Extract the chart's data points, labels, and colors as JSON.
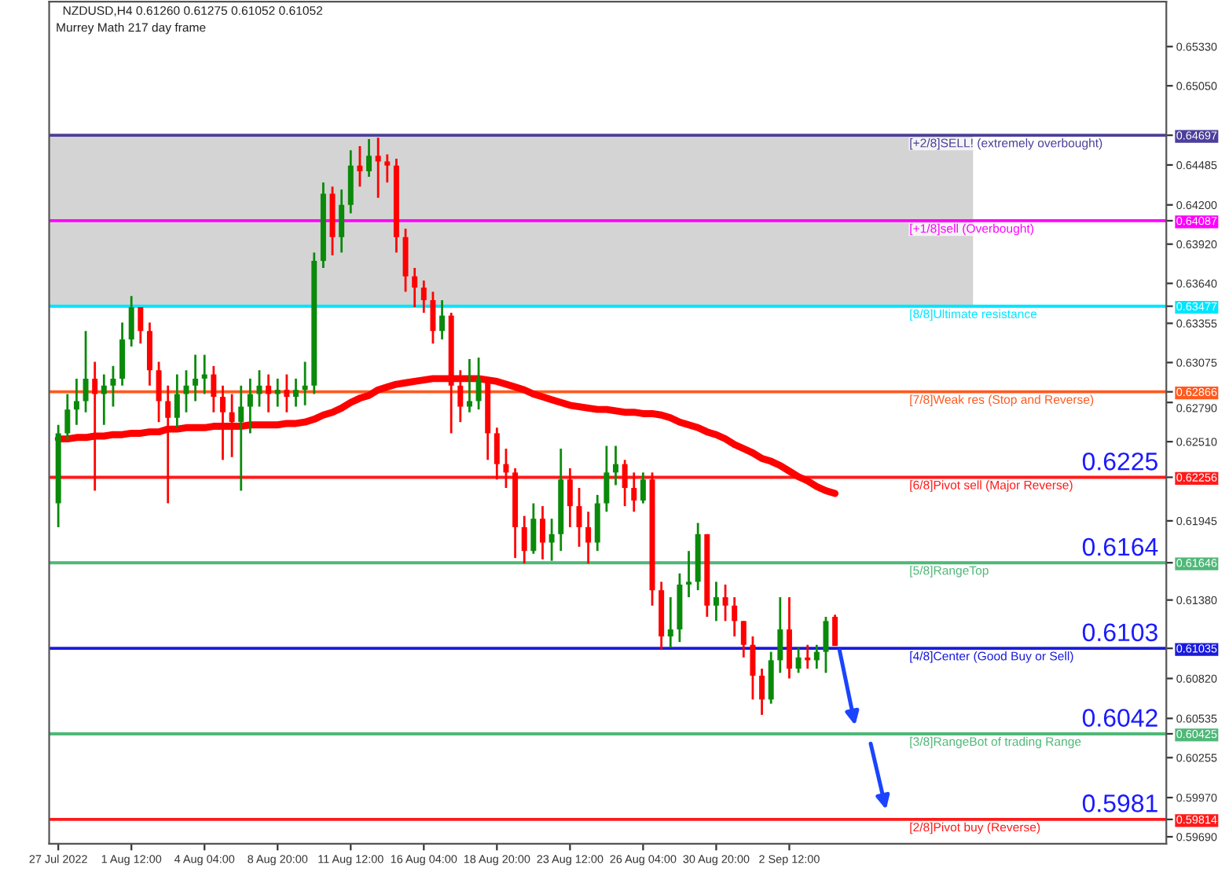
{
  "chart_data": {
    "type": "candlestick",
    "title": "NZDUSD,H4 0.61260 0.61275 0.61052 0.61052",
    "subtitle": "Murrey Math 217 day frame",
    "categories": [
      "27 Jul 2022",
      null,
      null,
      null,
      null,
      null,
      null,
      null,
      "1 Aug 12:00",
      null,
      null,
      null,
      null,
      null,
      null,
      null,
      "4 Aug 04:00",
      null,
      null,
      null,
      null,
      null,
      null,
      null,
      "8 Aug 20:00",
      null,
      null,
      null,
      null,
      null,
      null,
      null,
      "11 Aug 12:00",
      null,
      null,
      null,
      null,
      null,
      null,
      null,
      "16 Aug 04:00",
      null,
      null,
      null,
      null,
      null,
      null,
      null,
      "18 Aug 20:00",
      null,
      null,
      null,
      null,
      null,
      null,
      null,
      "23 Aug 12:00",
      null,
      null,
      null,
      null,
      null,
      null,
      null,
      "26 Aug 04:00",
      null,
      null,
      null,
      null,
      null,
      null,
      null,
      "30 Aug 20:00",
      null,
      null,
      null,
      null,
      null,
      null,
      null,
      "2 Sep 12:00",
      null,
      null,
      null,
      null,
      null
    ],
    "ohlc": [
      [
        0.6207,
        0.6263,
        0.619,
        0.6257
      ],
      [
        0.6257,
        0.6285,
        0.6252,
        0.6274
      ],
      [
        0.6274,
        0.6296,
        0.6263,
        0.628
      ],
      [
        0.628,
        0.633,
        0.6272,
        0.6296
      ],
      [
        0.6296,
        0.6308,
        0.6216,
        0.6285
      ],
      [
        0.6285,
        0.6299,
        0.6263,
        0.6291
      ],
      [
        0.6291,
        0.6305,
        0.6276,
        0.6296
      ],
      [
        0.6296,
        0.6336,
        0.6291,
        0.6324
      ],
      [
        0.6324,
        0.6355,
        0.6319,
        0.6347
      ],
      [
        0.6347,
        0.6347,
        0.6321,
        0.633
      ],
      [
        0.633,
        0.6336,
        0.6291,
        0.6302
      ],
      [
        0.6302,
        0.6308,
        0.6265,
        0.628
      ],
      [
        0.628,
        0.6291,
        0.6207,
        0.6268
      ],
      [
        0.6268,
        0.6299,
        0.6261,
        0.6285
      ],
      [
        0.6285,
        0.6302,
        0.6272,
        0.6291
      ],
      [
        0.6291,
        0.6313,
        0.628,
        0.6296
      ],
      [
        0.6296,
        0.6313,
        0.6285,
        0.6299
      ],
      [
        0.6299,
        0.6305,
        0.6272,
        0.6283
      ],
      [
        0.6283,
        0.6291,
        0.6238,
        0.6272
      ],
      [
        0.6272,
        0.6285,
        0.624,
        0.6265
      ],
      [
        0.6265,
        0.6291,
        0.6216,
        0.6276
      ],
      [
        0.6276,
        0.6296,
        0.6257,
        0.6285
      ],
      [
        0.6285,
        0.6302,
        0.6276,
        0.6291
      ],
      [
        0.6291,
        0.6299,
        0.6272,
        0.6285
      ],
      [
        0.6285,
        0.6296,
        0.6276,
        0.6288
      ],
      [
        0.6288,
        0.6299,
        0.6272,
        0.6283
      ],
      [
        0.6283,
        0.6296,
        0.6276,
        0.6288
      ],
      [
        0.6288,
        0.6308,
        0.6277,
        0.6291
      ],
      [
        0.6291,
        0.6386,
        0.6285,
        0.638
      ],
      [
        0.638,
        0.6436,
        0.6375,
        0.6428
      ],
      [
        0.6428,
        0.6433,
        0.6384,
        0.6397
      ],
      [
        0.6397,
        0.6431,
        0.6386,
        0.642
      ],
      [
        0.642,
        0.6459,
        0.6414,
        0.6448
      ],
      [
        0.6448,
        0.6462,
        0.6433,
        0.6444
      ],
      [
        0.6444,
        0.6467,
        0.644,
        0.6455
      ],
      [
        0.6455,
        0.6468,
        0.6425,
        0.6451
      ],
      [
        0.6451,
        0.6456,
        0.6436,
        0.6448
      ],
      [
        0.6448,
        0.6453,
        0.6386,
        0.6397
      ],
      [
        0.6397,
        0.6403,
        0.6358,
        0.6369
      ],
      [
        0.6369,
        0.6375,
        0.6347,
        0.6361
      ],
      [
        0.6361,
        0.6366,
        0.6343,
        0.6352
      ],
      [
        0.6352,
        0.6358,
        0.6321,
        0.633
      ],
      [
        0.633,
        0.6352,
        0.6324,
        0.6341
      ],
      [
        0.6341,
        0.6343,
        0.6257,
        0.6291
      ],
      [
        0.6291,
        0.6302,
        0.6265,
        0.6276
      ],
      [
        0.6276,
        0.631,
        0.6272,
        0.628
      ],
      [
        0.628,
        0.6311,
        0.6274,
        0.6296
      ],
      [
        0.6296,
        0.6296,
        0.6238,
        0.6257
      ],
      [
        0.6257,
        0.6261,
        0.6224,
        0.6235
      ],
      [
        0.6235,
        0.6246,
        0.6218,
        0.6229
      ],
      [
        0.6229,
        0.6232,
        0.6168,
        0.619
      ],
      [
        0.619,
        0.6198,
        0.6164,
        0.6173
      ],
      [
        0.6173,
        0.6207,
        0.6171,
        0.6196
      ],
      [
        0.6196,
        0.6205,
        0.6167,
        0.6179
      ],
      [
        0.6179,
        0.6196,
        0.6166,
        0.6185
      ],
      [
        0.6185,
        0.6246,
        0.6173,
        0.6224
      ],
      [
        0.6224,
        0.6232,
        0.619,
        0.6205
      ],
      [
        0.6205,
        0.6218,
        0.6176,
        0.619
      ],
      [
        0.619,
        0.6201,
        0.6164,
        0.6179
      ],
      [
        0.6179,
        0.6213,
        0.6173,
        0.6207
      ],
      [
        0.6207,
        0.6248,
        0.6201,
        0.6229
      ],
      [
        0.6229,
        0.6248,
        0.622,
        0.6235
      ],
      [
        0.6235,
        0.6238,
        0.6205,
        0.6218
      ],
      [
        0.6218,
        0.6229,
        0.6201,
        0.6209
      ],
      [
        0.6209,
        0.6229,
        0.6207,
        0.6224
      ],
      [
        0.6224,
        0.6229,
        0.6134,
        0.6145
      ],
      [
        0.6145,
        0.6151,
        0.6103,
        0.6112
      ],
      [
        0.6112,
        0.614,
        0.6104,
        0.6117
      ],
      [
        0.6117,
        0.6157,
        0.6108,
        0.6149
      ],
      [
        0.6149,
        0.6173,
        0.614,
        0.6151
      ],
      [
        0.6151,
        0.6193,
        0.6145,
        0.6185
      ],
      [
        0.6185,
        0.6185,
        0.6126,
        0.6134
      ],
      [
        0.6134,
        0.6151,
        0.6123,
        0.614
      ],
      [
        0.614,
        0.6149,
        0.6123,
        0.6134
      ],
      [
        0.6134,
        0.614,
        0.6112,
        0.6123
      ],
      [
        0.6123,
        0.6123,
        0.6097,
        0.6106
      ],
      [
        0.6106,
        0.6112,
        0.6067,
        0.6084
      ],
      [
        0.6084,
        0.6089,
        0.6056,
        0.6067
      ],
      [
        0.6067,
        0.6101,
        0.6064,
        0.6095
      ],
      [
        0.6095,
        0.614,
        0.6086,
        0.6117
      ],
      [
        0.6117,
        0.614,
        0.6082,
        0.6089
      ],
      [
        0.6089,
        0.6104,
        0.6086,
        0.6097
      ],
      [
        0.6097,
        0.6106,
        0.6089,
        0.6095
      ],
      [
        0.6095,
        0.6106,
        0.6089,
        0.6101
      ],
      [
        0.6101,
        0.6126,
        0.6086,
        0.6123
      ],
      [
        0.6126,
        0.61275,
        0.61052,
        0.61052
      ]
    ],
    "series": [
      {
        "type": "line",
        "color": "#ff0000",
        "values": [
          0.6253,
          0.6253,
          0.6254,
          0.6254,
          0.6255,
          0.6255,
          0.6256,
          0.6256,
          0.6257,
          0.6257,
          0.6258,
          0.6258,
          0.626,
          0.626,
          0.6261,
          0.6261,
          0.6261,
          0.6262,
          0.6262,
          0.6262,
          0.6262,
          0.6263,
          0.6263,
          0.6263,
          0.6263,
          0.6264,
          0.6264,
          0.6265,
          0.6267,
          0.627,
          0.6272,
          0.6275,
          0.6279,
          0.6282,
          0.6284,
          0.6288,
          0.629,
          0.6292,
          0.6293,
          0.6294,
          0.6295,
          0.6296,
          0.6296,
          0.6296,
          0.6296,
          0.6296,
          0.6296,
          0.6295,
          0.6294,
          0.6292,
          0.629,
          0.6288,
          0.6285,
          0.6283,
          0.6281,
          0.6279,
          0.6277,
          0.6276,
          0.6275,
          0.6274,
          0.6274,
          0.6273,
          0.6272,
          0.6272,
          0.6271,
          0.6271,
          0.627,
          0.6268,
          0.6265,
          0.6263,
          0.6261,
          0.6258,
          0.6256,
          0.6253,
          0.6249,
          0.6246,
          0.6243,
          0.6239,
          0.6237,
          0.6234,
          0.623,
          0.6226,
          0.6223,
          0.6219,
          0.6216,
          0.6214
        ]
      }
    ],
    "ylim": [
      0.5964,
      0.6565
    ],
    "yticks": [
      {
        "value": 0.6533,
        "label": "0.65330"
      },
      {
        "value": 0.6505,
        "label": "0.65050"
      },
      {
        "value": 0.64485,
        "label": "0.64485"
      },
      {
        "value": 0.642,
        "label": "0.64200"
      },
      {
        "value": 0.6392,
        "label": "0.63920"
      },
      {
        "value": 0.6364,
        "label": "0.63640"
      },
      {
        "value": 0.63355,
        "label": "0.63355"
      },
      {
        "value": 0.63075,
        "label": "0.63075"
      },
      {
        "value": 0.6279,
        "label": "0.62790"
      },
      {
        "value": 0.6251,
        "label": "0.62510"
      },
      {
        "value": 0.61945,
        "label": "0.61945"
      },
      {
        "value": 0.6138,
        "label": "0.61380"
      },
      {
        "value": 0.6082,
        "label": "0.60820"
      },
      {
        "value": 0.60535,
        "label": "0.60535"
      },
      {
        "value": 0.60255,
        "label": "0.60255"
      },
      {
        "value": 0.5997,
        "label": "0.59970"
      },
      {
        "value": 0.5969,
        "label": "0.59690"
      },
      {
        "value": 0.64697,
        "label": "0.64697"
      },
      {
        "value": 0.64087,
        "label": "0.64087"
      },
      {
        "value": 0.63477,
        "label": "0.63477"
      },
      {
        "value": 0.62866,
        "label": "0.62866"
      },
      {
        "value": 0.62256,
        "label": "0.62256"
      },
      {
        "value": 0.61646,
        "label": "0.61646"
      },
      {
        "value": 0.61035,
        "label": "0.61035"
      },
      {
        "value": 0.60425,
        "label": "0.60425"
      },
      {
        "value": 0.59814,
        "label": "0.59814"
      }
    ],
    "ref_lines": [
      {
        "axis": "y",
        "value": 0.64697,
        "label": "[+2/8]SELL! (extremely overbought)",
        "color": "#4b3f9a"
      },
      {
        "axis": "y",
        "value": 0.64087,
        "label": "[+1/8]sell (Overbought)",
        "color": "#ff00ff"
      },
      {
        "axis": "y",
        "value": 0.63477,
        "label": "[8/8]Ultimate resistance",
        "color": "#00e5ff"
      },
      {
        "axis": "y",
        "value": 0.62866,
        "label": "[7/8]Weak res (Stop and Reverse)",
        "color": "#ff5a1f"
      },
      {
        "axis": "y",
        "value": 0.62256,
        "label": "[6/8]Pivot sell (Major Reverse)",
        "color": "#ff1a1a"
      },
      {
        "axis": "y",
        "value": 0.61646,
        "label": "[5/8]RangeTop",
        "color": "#4fb878"
      },
      {
        "axis": "y",
        "value": 0.61035,
        "label": "[4/8]Center (Good Buy or Sell)",
        "color": "#1a1adb"
      },
      {
        "axis": "y",
        "value": 0.60425,
        "label": "[3/8]RangeBot of trading Range",
        "color": "#4fb878"
      },
      {
        "axis": "y",
        "value": 0.59814,
        "label": "[2/8]Pivot buy (Reverse)",
        "color": "#ff1a1a"
      }
    ],
    "bands": [
      {
        "axis": "y",
        "from": 0.63477,
        "to": 0.64697,
        "color": "#d4d4d4"
      }
    ],
    "annotations": [
      {
        "text": "0.6225",
        "y": 0.6225
      },
      {
        "text": "0.6164",
        "y": 0.6164
      },
      {
        "text": "0.6103",
        "y": 0.6103
      },
      {
        "text": "0.6042",
        "y": 0.6042
      },
      {
        "text": "0.5981",
        "y": 0.5981
      }
    ],
    "grid": false
  }
}
